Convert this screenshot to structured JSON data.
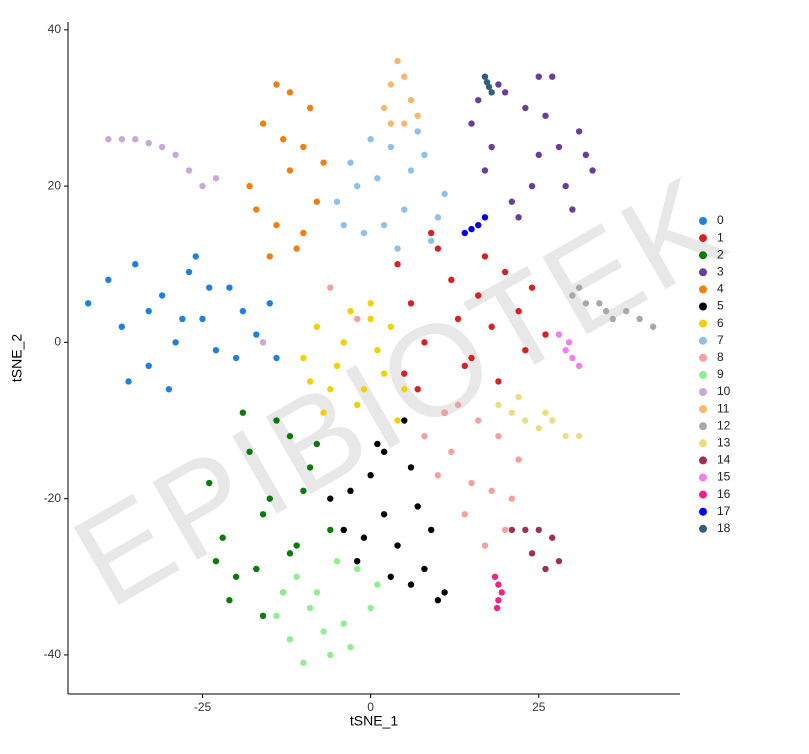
{
  "chart_data": {
    "type": "scatter",
    "x_label": "tSNE_1",
    "y_label": "tSNE_2",
    "watermark": "EPIBIOTEK",
    "xlim": [
      -45,
      46
    ],
    "ylim": [
      -45,
      41
    ],
    "xticks": [
      -25,
      0,
      25
    ],
    "yticks": [
      -40,
      -20,
      0,
      20,
      40
    ],
    "grid": false,
    "legend": "right",
    "series": [
      {
        "name": "0",
        "color": "#1f80e0",
        "x": [
          -42,
          -39,
          -37,
          -35,
          -33,
          -31,
          -29,
          -27,
          -25,
          -23,
          -21,
          -19,
          -17,
          -15,
          -36,
          -30,
          -26,
          -20,
          -33,
          -28,
          -24,
          -14
        ],
        "values": [
          5,
          8,
          2,
          10,
          -3,
          6,
          0,
          9,
          3,
          -1,
          7,
          4,
          1,
          5,
          -5,
          -6,
          11,
          -2,
          4,
          3,
          7,
          -2
        ]
      },
      {
        "name": "1",
        "color": "#d62222",
        "x": [
          4,
          6,
          8,
          10,
          12,
          14,
          16,
          18,
          20,
          22,
          24,
          26,
          7,
          11,
          15,
          19,
          9,
          13,
          5,
          17,
          23
        ],
        "values": [
          10,
          5,
          0,
          12,
          8,
          -3,
          6,
          2,
          9,
          4,
          7,
          1,
          -6,
          -9,
          -2,
          -5,
          14,
          3,
          -4,
          11,
          -1
        ]
      },
      {
        "name": "2",
        "color": "#0b7a0b",
        "x": [
          -24,
          -22,
          -20,
          -18,
          -16,
          -14,
          -12,
          -10,
          -8,
          -6,
          -21,
          -17,
          -13,
          -9,
          -19,
          -15,
          -11,
          -23,
          -16,
          -12
        ],
        "values": [
          -18,
          -25,
          -30,
          -14,
          -22,
          -10,
          -27,
          -19,
          -13,
          -24,
          -33,
          -29,
          -32,
          -16,
          -9,
          -20,
          -26,
          -28,
          -35,
          -12
        ]
      },
      {
        "name": "3",
        "color": "#6a3d9a",
        "x": [
          15,
          17,
          19,
          21,
          23,
          25,
          27,
          29,
          31,
          33,
          18,
          22,
          26,
          30,
          20,
          24,
          28,
          32,
          16,
          25
        ],
        "values": [
          28,
          22,
          33,
          18,
          30,
          24,
          34,
          20,
          27,
          22,
          25,
          16,
          29,
          17,
          32,
          20,
          25,
          24,
          31,
          34
        ]
      },
      {
        "name": "4",
        "color": "#f07f12",
        "x": [
          -18,
          -16,
          -14,
          -12,
          -10,
          -8,
          -7,
          -15,
          -11,
          -13,
          -9,
          -17,
          -12,
          -10,
          -14
        ],
        "values": [
          20,
          28,
          15,
          32,
          25,
          18,
          23,
          11,
          12,
          26,
          30,
          17,
          22,
          14,
          33
        ]
      },
      {
        "name": "5",
        "color": "#000000",
        "x": [
          -6,
          -4,
          -2,
          0,
          2,
          4,
          6,
          8,
          10,
          -3,
          1,
          5,
          9,
          3,
          7,
          -1,
          11,
          2,
          6
        ],
        "values": [
          -20,
          -24,
          -28,
          -17,
          -22,
          -26,
          -31,
          -29,
          -33,
          -19,
          -13,
          -10,
          -24,
          -30,
          -21,
          -25,
          -32,
          -14,
          -16
        ]
      },
      {
        "name": "6",
        "color": "#f5d000",
        "x": [
          -10,
          -8,
          -6,
          -4,
          -2,
          0,
          2,
          4,
          -7,
          -3,
          1,
          5,
          -5,
          -1,
          3,
          -9,
          0
        ],
        "values": [
          -2,
          2,
          -6,
          0,
          -8,
          3,
          -4,
          -10,
          -9,
          4,
          -1,
          -6,
          -3,
          -6,
          2,
          -5,
          5
        ]
      },
      {
        "name": "7",
        "color": "#8ec0e8",
        "x": [
          -5,
          -3,
          -1,
          1,
          3,
          5,
          7,
          9,
          11,
          -2,
          2,
          6,
          10,
          0,
          4,
          8,
          -4
        ],
        "values": [
          18,
          23,
          14,
          21,
          25,
          17,
          27,
          13,
          19,
          20,
          15,
          22,
          16,
          26,
          12,
          24,
          15
        ]
      },
      {
        "name": "8",
        "color": "#f4a0a0",
        "x": [
          8,
          10,
          12,
          14,
          16,
          18,
          20,
          22,
          13,
          17,
          19,
          15,
          21,
          11,
          -6,
          -2
        ],
        "values": [
          -12,
          -17,
          -14,
          -22,
          -10,
          -19,
          -24,
          -15,
          -8,
          -26,
          -12,
          -18,
          -20,
          -9,
          7,
          3
        ]
      },
      {
        "name": "9",
        "color": "#90ee90",
        "x": [
          -14,
          -12,
          -10,
          -8,
          -6,
          -4,
          -2,
          0,
          1,
          -11,
          -7,
          -3,
          -9,
          -5,
          -13
        ],
        "values": [
          -35,
          -38,
          -41,
          -32,
          -40,
          -36,
          -29,
          -34,
          -31,
          -30,
          -37,
          -39,
          -34,
          -28,
          -32
        ]
      },
      {
        "name": "10",
        "color": "#c8a8d8",
        "x": [
          -39,
          -37,
          -35,
          -33,
          -31,
          -29,
          -27,
          -25,
          -23,
          -16
        ],
        "values": [
          26,
          26,
          26,
          25.5,
          25,
          24,
          22,
          20,
          21,
          0
        ]
      },
      {
        "name": "11",
        "color": "#f7b86a",
        "x": [
          2,
          3,
          4,
          5,
          6,
          7,
          3,
          5
        ],
        "values": [
          30,
          33,
          36,
          28,
          31,
          29,
          28,
          34
        ]
      },
      {
        "name": "12",
        "color": "#a8a8a8",
        "x": [
          30,
          32,
          34,
          36,
          38,
          40,
          42,
          35,
          31
        ],
        "values": [
          6,
          5,
          5,
          3,
          4,
          3,
          2,
          4,
          7
        ]
      },
      {
        "name": "13",
        "color": "#e8e080",
        "x": [
          19,
          21,
          23,
          25,
          27,
          29,
          31,
          22,
          26
        ],
        "values": [
          -8,
          -9,
          -10,
          -11,
          -10,
          -12,
          -12,
          -7,
          -9
        ]
      },
      {
        "name": "14",
        "color": "#a0304f",
        "x": [
          21,
          23,
          25,
          27,
          28,
          26,
          24
        ],
        "values": [
          -24,
          -24,
          -24,
          -25,
          -28,
          -29,
          -27
        ]
      },
      {
        "name": "15",
        "color": "#f080f0",
        "x": [
          28,
          29,
          30,
          31,
          29.5
        ],
        "values": [
          1,
          -1,
          -2,
          -3,
          0
        ]
      },
      {
        "name": "16",
        "color": "#f0208a",
        "x": [
          18.5,
          19,
          19.5,
          19,
          18.8
        ],
        "values": [
          -30,
          -31,
          -32,
          -33,
          -34
        ]
      },
      {
        "name": "17",
        "color": "#0000ee",
        "x": [
          14,
          15,
          16,
          17
        ],
        "values": [
          14,
          14.5,
          15,
          16
        ]
      },
      {
        "name": "18",
        "color": "#2f5f7f",
        "x": [
          17,
          17.3,
          17.6,
          18
        ],
        "values": [
          34,
          33.3,
          32.7,
          32
        ]
      }
    ]
  }
}
